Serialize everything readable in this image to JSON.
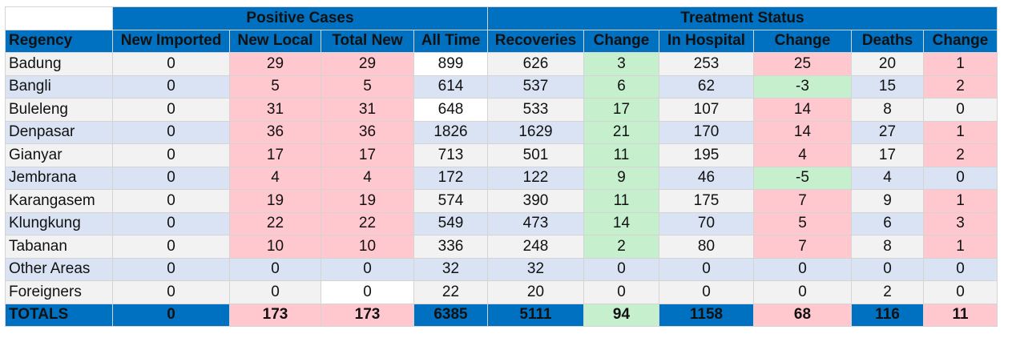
{
  "groups": {
    "positive": "Positive Cases",
    "treatment": "Treatment Status"
  },
  "headers": [
    "Regency",
    "New Imported",
    "New Local",
    "Total New",
    "All Time",
    "Recoveries",
    "Change",
    "In Hospital",
    "Change",
    "Deaths",
    "Change"
  ],
  "rows": [
    {
      "name": "Badung",
      "v": [
        "0",
        "29",
        "29",
        "899",
        "626",
        "3",
        "253",
        "25",
        "20",
        "1"
      ],
      "s": [
        "",
        "red",
        "red",
        "white",
        "",
        "green",
        "",
        "red",
        "",
        "red"
      ]
    },
    {
      "name": "Bangli",
      "v": [
        "0",
        "5",
        "5",
        "614",
        "537",
        "6",
        "62",
        "-3",
        "15",
        "2"
      ],
      "s": [
        "",
        "red",
        "red",
        "",
        "",
        "green",
        "",
        "green",
        "",
        "red"
      ]
    },
    {
      "name": "Buleleng",
      "v": [
        "0",
        "31",
        "31",
        "648",
        "533",
        "17",
        "107",
        "14",
        "8",
        "0"
      ],
      "s": [
        "",
        "red",
        "red",
        "white",
        "",
        "green",
        "",
        "red",
        "",
        ""
      ]
    },
    {
      "name": "Denpasar",
      "v": [
        "0",
        "36",
        "36",
        "1826",
        "1629",
        "21",
        "170",
        "14",
        "27",
        "1"
      ],
      "s": [
        "",
        "red",
        "red",
        "",
        "",
        "green",
        "",
        "red",
        "",
        "red"
      ]
    },
    {
      "name": "Gianyar",
      "v": [
        "0",
        "17",
        "17",
        "713",
        "501",
        "11",
        "195",
        "4",
        "17",
        "2"
      ],
      "s": [
        "",
        "red",
        "red",
        "",
        "",
        "green",
        "",
        "red",
        "",
        "red"
      ]
    },
    {
      "name": "Jembrana",
      "v": [
        "0",
        "4",
        "4",
        "172",
        "122",
        "9",
        "46",
        "-5",
        "4",
        "0"
      ],
      "s": [
        "",
        "red",
        "red",
        "",
        "",
        "green",
        "",
        "green",
        "",
        ""
      ]
    },
    {
      "name": "Karangasem",
      "v": [
        "0",
        "19",
        "19",
        "574",
        "390",
        "11",
        "175",
        "7",
        "9",
        "1"
      ],
      "s": [
        "",
        "red",
        "red",
        "",
        "",
        "green",
        "",
        "red",
        "",
        "red"
      ]
    },
    {
      "name": "Klungkung",
      "v": [
        "0",
        "22",
        "22",
        "549",
        "473",
        "14",
        "70",
        "5",
        "6",
        "3"
      ],
      "s": [
        "",
        "red",
        "red",
        "",
        "",
        "green",
        "",
        "red",
        "",
        "red"
      ]
    },
    {
      "name": "Tabanan",
      "v": [
        "0",
        "10",
        "10",
        "336",
        "248",
        "2",
        "80",
        "7",
        "8",
        "1"
      ],
      "s": [
        "",
        "red",
        "red",
        "",
        "",
        "green",
        "",
        "red",
        "",
        "red"
      ]
    },
    {
      "name": "Other Areas",
      "v": [
        "0",
        "0",
        "0",
        "32",
        "32",
        "0",
        "0",
        "0",
        "0",
        "0"
      ],
      "s": [
        "",
        "",
        "",
        "",
        "",
        "",
        "",
        "",
        "",
        ""
      ]
    },
    {
      "name": "Foreigners",
      "v": [
        "0",
        "0",
        "0",
        "22",
        "20",
        "0",
        "0",
        "0",
        "2",
        "0"
      ],
      "s": [
        "",
        "",
        "white",
        "",
        "",
        "",
        "",
        "",
        "",
        ""
      ]
    }
  ],
  "totals": {
    "name": "TOTALS",
    "v": [
      "0",
      "173",
      "173",
      "6385",
      "5111",
      "94",
      "1158",
      "68",
      "116",
      "11"
    ],
    "s": [
      "",
      "red",
      "red",
      "",
      "",
      "green",
      "",
      "red",
      "",
      "red"
    ]
  }
}
